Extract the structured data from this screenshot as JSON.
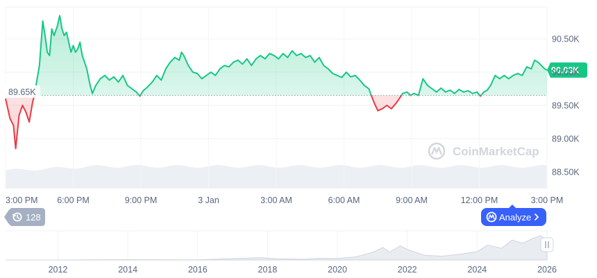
{
  "chart_data": [
    {
      "type": "area",
      "baseline_label": "89.65K",
      "baseline_value": 89650,
      "current_label": "90.03K",
      "current_value": 90030,
      "y_ticks": [
        {
          "value": 90500,
          "label": "90.50K"
        },
        {
          "value": 90000,
          "label": "90.00K"
        },
        {
          "value": 89500,
          "label": "89.50K"
        },
        {
          "value": 89000,
          "label": "89.00K"
        },
        {
          "value": 88500,
          "label": "88.50K"
        }
      ],
      "x_ticks": [
        {
          "t": 0,
          "label": "3:00 PM"
        },
        {
          "t": 3,
          "label": "6:00 PM"
        },
        {
          "t": 6,
          "label": "9:00 PM"
        },
        {
          "t": 9,
          "label": "3 Jan"
        },
        {
          "t": 12,
          "label": "3:00 AM"
        },
        {
          "t": 15,
          "label": "6:00 AM"
        },
        {
          "t": 18,
          "label": "9:00 AM"
        },
        {
          "t": 21,
          "label": "12:00 PM"
        },
        {
          "t": 24,
          "label": "3:00 PM"
        }
      ],
      "ylim": [
        88250,
        90980
      ],
      "xlim": [
        0,
        24
      ],
      "up_color": "#16c784",
      "down_color": "#ea3943",
      "series": [
        {
          "values": [
            [
              0,
              89600
            ],
            [
              0.2,
              89300
            ],
            [
              0.35,
              89200
            ],
            [
              0.45,
              88850
            ],
            [
              0.6,
              89350
            ],
            [
              0.75,
              89500
            ],
            [
              0.9,
              89400
            ],
            [
              1.05,
              89250
            ],
            [
              1.2,
              89550
            ],
            [
              1.28,
              89650
            ],
            [
              1.35,
              89800
            ],
            [
              1.5,
              90100
            ],
            [
              1.65,
              90770
            ],
            [
              1.75,
              90550
            ],
            [
              1.85,
              90300
            ],
            [
              1.95,
              90250
            ],
            [
              2.05,
              90650
            ],
            [
              2.15,
              90550
            ],
            [
              2.3,
              90700
            ],
            [
              2.4,
              90850
            ],
            [
              2.5,
              90650
            ],
            [
              2.6,
              90550
            ],
            [
              2.7,
              90600
            ],
            [
              2.8,
              90450
            ],
            [
              2.9,
              90300
            ],
            [
              3.0,
              90400
            ],
            [
              3.1,
              90300
            ],
            [
              3.2,
              90350
            ],
            [
              3.3,
              90450
            ],
            [
              3.4,
              90250
            ],
            [
              3.5,
              90150
            ],
            [
              3.6,
              90050
            ],
            [
              3.75,
              89800
            ],
            [
              3.85,
              89680
            ],
            [
              4.0,
              89800
            ],
            [
              4.2,
              89900
            ],
            [
              4.4,
              89950
            ],
            [
              4.6,
              89880
            ],
            [
              4.8,
              89930
            ],
            [
              5.0,
              89850
            ],
            [
              5.2,
              89950
            ],
            [
              5.4,
              89800
            ],
            [
              5.6,
              89750
            ],
            [
              5.8,
              89700
            ],
            [
              5.95,
              89640
            ],
            [
              6.1,
              89720
            ],
            [
              6.3,
              89780
            ],
            [
              6.5,
              89850
            ],
            [
              6.7,
              89950
            ],
            [
              6.9,
              89880
            ],
            [
              7.1,
              90050
            ],
            [
              7.3,
              90150
            ],
            [
              7.5,
              90220
            ],
            [
              7.7,
              90180
            ],
            [
              7.8,
              90300
            ],
            [
              7.9,
              90250
            ],
            [
              8.1,
              90100
            ],
            [
              8.3,
              90000
            ],
            [
              8.5,
              89980
            ],
            [
              8.7,
              89900
            ],
            [
              8.9,
              89950
            ],
            [
              9.1,
              90000
            ],
            [
              9.3,
              89950
            ],
            [
              9.5,
              90050
            ],
            [
              9.7,
              90100
            ],
            [
              9.9,
              90080
            ],
            [
              10.1,
              90150
            ],
            [
              10.3,
              90180
            ],
            [
              10.5,
              90120
            ],
            [
              10.7,
              90200
            ],
            [
              10.9,
              90100
            ],
            [
              11.1,
              90200
            ],
            [
              11.3,
              90250
            ],
            [
              11.5,
              90200
            ],
            [
              11.7,
              90280
            ],
            [
              11.9,
              90250
            ],
            [
              12.1,
              90200
            ],
            [
              12.3,
              90280
            ],
            [
              12.5,
              90220
            ],
            [
              12.7,
              90320
            ],
            [
              12.9,
              90250
            ],
            [
              13.1,
              90280
            ],
            [
              13.3,
              90220
            ],
            [
              13.5,
              90250
            ],
            [
              13.7,
              90150
            ],
            [
              13.9,
              90220
            ],
            [
              14.1,
              90100
            ],
            [
              14.3,
              90050
            ],
            [
              14.5,
              89980
            ],
            [
              14.7,
              89950
            ],
            [
              14.9,
              89920
            ],
            [
              15.1,
              90000
            ],
            [
              15.3,
              89930
            ],
            [
              15.5,
              89950
            ],
            [
              15.7,
              89880
            ],
            [
              15.9,
              89800
            ],
            [
              16.1,
              89750
            ],
            [
              16.2,
              89660
            ],
            [
              16.35,
              89530
            ],
            [
              16.5,
              89420
            ],
            [
              16.7,
              89450
            ],
            [
              16.9,
              89500
            ],
            [
              17.1,
              89450
            ],
            [
              17.3,
              89530
            ],
            [
              17.45,
              89600
            ],
            [
              17.6,
              89680
            ],
            [
              17.8,
              89700
            ],
            [
              17.95,
              89650
            ],
            [
              18.1,
              89680
            ],
            [
              18.3,
              89650
            ],
            [
              18.5,
              89900
            ],
            [
              18.7,
              89800
            ],
            [
              18.9,
              89750
            ],
            [
              19.1,
              89700
            ],
            [
              19.3,
              89760
            ],
            [
              19.5,
              89700
            ],
            [
              19.7,
              89730
            ],
            [
              19.9,
              89680
            ],
            [
              20.1,
              89740
            ],
            [
              20.3,
              89700
            ],
            [
              20.5,
              89720
            ],
            [
              20.7,
              89680
            ],
            [
              20.9,
              89700
            ],
            [
              21.05,
              89640
            ],
            [
              21.2,
              89700
            ],
            [
              21.35,
              89730
            ],
            [
              21.5,
              89800
            ],
            [
              21.7,
              89950
            ],
            [
              21.9,
              89900
            ],
            [
              22.1,
              89950
            ],
            [
              22.3,
              89900
            ],
            [
              22.5,
              89950
            ],
            [
              22.7,
              89980
            ],
            [
              22.9,
              89950
            ],
            [
              23.1,
              90080
            ],
            [
              23.3,
              90050
            ],
            [
              23.45,
              90180
            ],
            [
              23.6,
              90150
            ],
            [
              23.75,
              90100
            ],
            [
              23.9,
              90050
            ],
            [
              24.0,
              90030
            ]
          ]
        }
      ]
    },
    {
      "type": "area",
      "x_ticks": [
        {
          "year": 2012,
          "label": "2012"
        },
        {
          "year": 2014,
          "label": "2014"
        },
        {
          "year": 2016,
          "label": "2016"
        },
        {
          "year": 2018,
          "label": "2018"
        },
        {
          "year": 2020,
          "label": "2020"
        },
        {
          "year": 2022,
          "label": "2022"
        },
        {
          "year": 2024,
          "label": "2024"
        },
        {
          "year": 2026,
          "label": "2026"
        }
      ],
      "xlim": [
        2010.5,
        2026.0
      ],
      "series": [
        {
          "values": [
            [
              2010.5,
              0
            ],
            [
              2012,
              0
            ],
            [
              2014,
              0.2
            ],
            [
              2016,
              0.1
            ],
            [
              2017.8,
              1.4
            ],
            [
              2018.2,
              0.8
            ],
            [
              2019,
              0.4
            ],
            [
              2019.5,
              1.0
            ],
            [
              2020,
              0.9
            ],
            [
              2020.5,
              1.8
            ],
            [
              2021.0,
              4.5
            ],
            [
              2021.3,
              7.5
            ],
            [
              2021.5,
              4.8
            ],
            [
              2021.8,
              8.5
            ],
            [
              2022.0,
              6.4
            ],
            [
              2022.5,
              2.8
            ],
            [
              2023.0,
              2.3
            ],
            [
              2023.5,
              3.5
            ],
            [
              2024.0,
              5.0
            ],
            [
              2024.3,
              9.0
            ],
            [
              2024.7,
              7.0
            ],
            [
              2025.0,
              12.0
            ],
            [
              2025.3,
              10.0
            ],
            [
              2025.6,
              13.0
            ],
            [
              2025.8,
              14.5
            ],
            [
              2026.0,
              12.5
            ]
          ]
        }
      ]
    }
  ],
  "watermark": {
    "text": "CoinMarketCap"
  },
  "history_badge": {
    "count": "128"
  },
  "analyze_button": {
    "label": "Analyze"
  },
  "colors": {
    "accent": "#3861fb",
    "badge": "#a6b0c3"
  }
}
